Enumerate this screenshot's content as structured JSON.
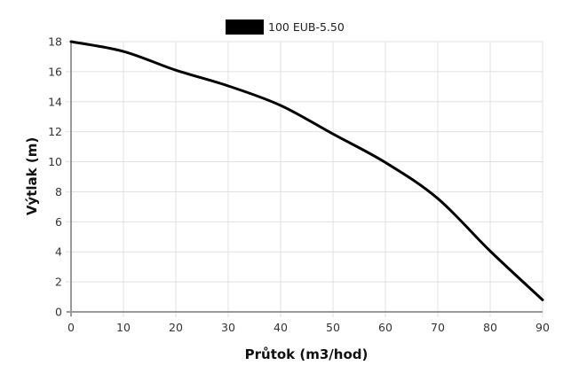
{
  "chart_data": {
    "type": "line",
    "title": "",
    "xlabel": "Průtok (m3/hod)",
    "ylabel": "Výtlak (m)",
    "xlim": [
      0,
      90
    ],
    "ylim": [
      0,
      18
    ],
    "x_ticks": [
      0,
      10,
      20,
      30,
      40,
      50,
      60,
      70,
      80,
      90
    ],
    "y_ticks": [
      0,
      2,
      4,
      6,
      8,
      10,
      12,
      14,
      16,
      18
    ],
    "grid": true,
    "legend_position": "top-center",
    "x": [
      0,
      10,
      20,
      30,
      40,
      50,
      60,
      70,
      80,
      90
    ],
    "series": [
      {
        "name": "100 EUB-5.50",
        "color": "#000000",
        "values": [
          18.0,
          17.35,
          16.1,
          15.05,
          13.75,
          11.85,
          9.95,
          7.55,
          4.05,
          0.8
        ]
      }
    ]
  },
  "colors": {
    "grid": "#e0e0e0",
    "axis": "#999999",
    "series": "#000000"
  }
}
